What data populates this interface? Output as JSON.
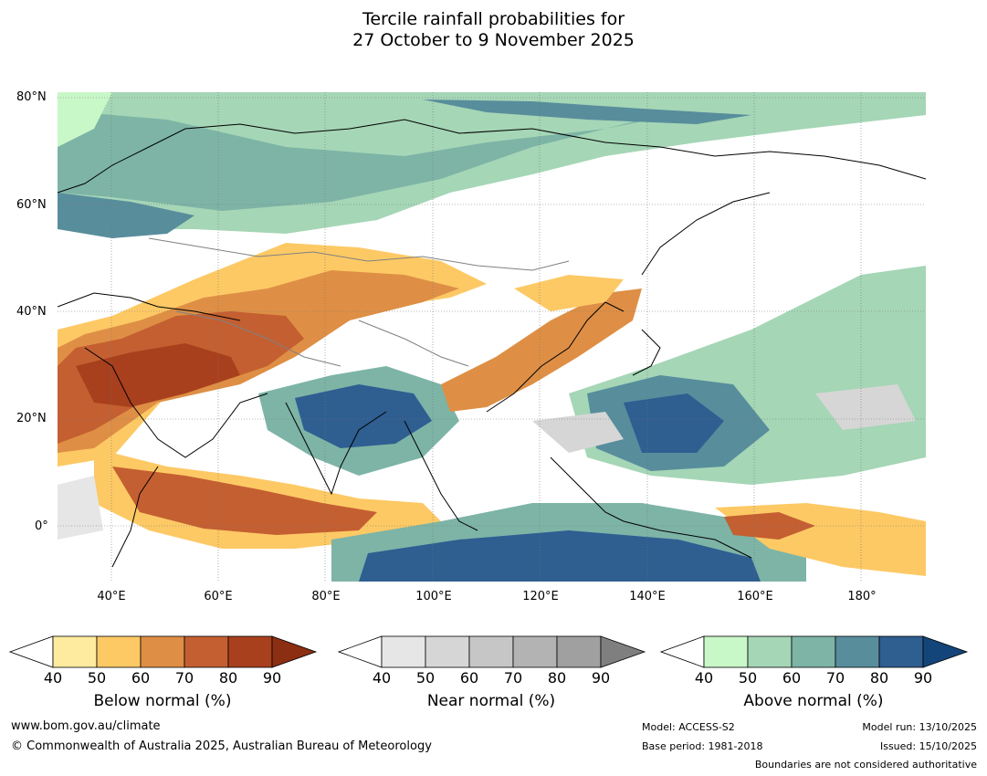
{
  "title": {
    "line1": "Tercile rainfall probabilities for",
    "line2": "27 October to 9 November 2025"
  },
  "map": {
    "lat_labels": [
      "80°N",
      "60°N",
      "40°N",
      "20°N",
      "0°"
    ],
    "lon_labels": [
      "40°E",
      "60°E",
      "80°E",
      "100°E",
      "120°E",
      "140°E",
      "160°E",
      "180°"
    ]
  },
  "colorbars": [
    {
      "label": "Below normal (%)",
      "ticks": [
        "40",
        "50",
        "60",
        "70",
        "80",
        "90"
      ],
      "colors": [
        "#ffffff",
        "#feeba0",
        "#fdc965",
        "#de8f45",
        "#c45f31",
        "#a8401e",
        "#8b2e12"
      ]
    },
    {
      "label": "Near normal (%)",
      "ticks": [
        "40",
        "50",
        "60",
        "70",
        "80",
        "90"
      ],
      "colors": [
        "#ffffff",
        "#e6e6e6",
        "#d6d6d6",
        "#c6c6c6",
        "#b3b3b3",
        "#a0a0a0",
        "#7f7f7f"
      ]
    },
    {
      "label": "Above normal (%)",
      "ticks": [
        "40",
        "50",
        "60",
        "70",
        "80",
        "90"
      ],
      "colors": [
        "#ffffff",
        "#c8f7c8",
        "#a5d6b6",
        "#7db4a6",
        "#588d9c",
        "#2f5e91",
        "#13457a"
      ]
    }
  ],
  "footer": {
    "website": "www.bom.gov.au/climate",
    "copyright": "© Commonwealth of Australia 2025, Australian Bureau of Meteorology",
    "model": "Model: ACCESS-S2",
    "base_period": "Base period: 1981-2018",
    "model_run": "Model run: 13/10/2025",
    "issued": "Issued: 15/10/2025",
    "disclaimer": "Boundaries are not considered authoritative"
  }
}
